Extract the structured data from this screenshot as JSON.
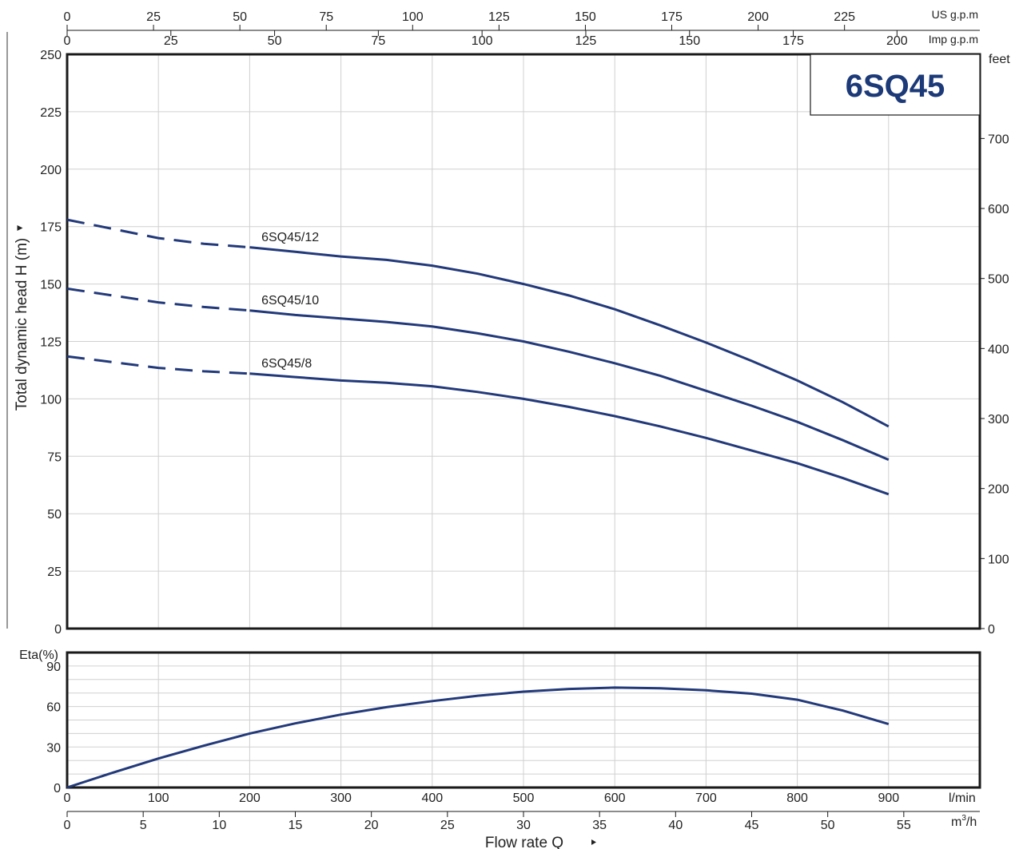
{
  "chart_data": [
    {
      "type": "line",
      "title": "6SQ45",
      "ylabel": "Total dynamic head H (m)",
      "ylabel_right": "feet",
      "xlabel": "Flow  rate  Q",
      "ylim": [
        0,
        250
      ],
      "yticks": [
        0,
        25,
        50,
        75,
        100,
        125,
        150,
        175,
        200,
        225,
        250
      ],
      "ylim_right": [
        0,
        820.2
      ],
      "yticks_right": [
        0,
        100,
        200,
        300,
        400,
        500,
        600,
        700
      ],
      "x_axes": [
        {
          "unit": "US g.p.m",
          "ticks": [
            0,
            25,
            50,
            75,
            100,
            125,
            150,
            175,
            200,
            225
          ]
        },
        {
          "unit": "Imp g.p.m",
          "ticks": [
            0,
            25,
            50,
            75,
            100,
            125,
            150,
            175,
            200
          ]
        },
        {
          "unit": "l/min",
          "ticks": [
            0,
            100,
            200,
            300,
            400,
            500,
            600,
            700,
            800,
            900
          ]
        },
        {
          "unit": "m3/h",
          "ticks": [
            0,
            5,
            10,
            15,
            20,
            25,
            30,
            35,
            40,
            45,
            50,
            55
          ]
        }
      ],
      "xlim": [
        0,
        1000
      ],
      "grid": true,
      "series": [
        {
          "name": "6SQ45/12",
          "dashed_until": 200,
          "x": [
            0,
            50,
            100,
            150,
            200,
            250,
            300,
            350,
            400,
            450,
            500,
            550,
            600,
            650,
            700,
            750,
            800,
            850,
            900
          ],
          "y": [
            178,
            174,
            170,
            167.5,
            166,
            164,
            162,
            160.5,
            158,
            154.5,
            150,
            145,
            139,
            132,
            124.5,
            116.5,
            108,
            98.5,
            88
          ]
        },
        {
          "name": "6SQ45/10",
          "dashed_until": 200,
          "x": [
            0,
            50,
            100,
            150,
            200,
            250,
            300,
            350,
            400,
            450,
            500,
            550,
            600,
            650,
            700,
            750,
            800,
            850,
            900
          ],
          "y": [
            148,
            145,
            142,
            140,
            138.5,
            136.5,
            135,
            133.5,
            131.5,
            128.5,
            125,
            120.5,
            115.5,
            110,
            103.5,
            97,
            90,
            82,
            73.5
          ]
        },
        {
          "name": "6SQ45/8",
          "dashed_until": 200,
          "x": [
            0,
            50,
            100,
            150,
            200,
            250,
            300,
            350,
            400,
            450,
            500,
            550,
            600,
            650,
            700,
            750,
            800,
            850,
            900
          ],
          "y": [
            118.5,
            116,
            113.5,
            112,
            111,
            109.5,
            108,
            107,
            105.5,
            103,
            100,
            96.5,
            92.5,
            88,
            83,
            77.5,
            72,
            65.5,
            58.5
          ]
        }
      ]
    },
    {
      "type": "line",
      "ylabel": "Eta(%)",
      "ylim": [
        0,
        100
      ],
      "yticks": [
        0,
        30,
        60,
        90
      ],
      "xlim": [
        0,
        1000
      ],
      "grid": true,
      "series": [
        {
          "x": [
            0,
            50,
            100,
            150,
            200,
            250,
            300,
            350,
            400,
            450,
            500,
            550,
            600,
            650,
            700,
            750,
            800,
            850,
            900
          ],
          "y": [
            0,
            11,
            21.5,
            31,
            40,
            47.5,
            54,
            59.5,
            64,
            68,
            71,
            73,
            74,
            73.5,
            72,
            69.5,
            65,
            57,
            47
          ]
        }
      ]
    }
  ]
}
